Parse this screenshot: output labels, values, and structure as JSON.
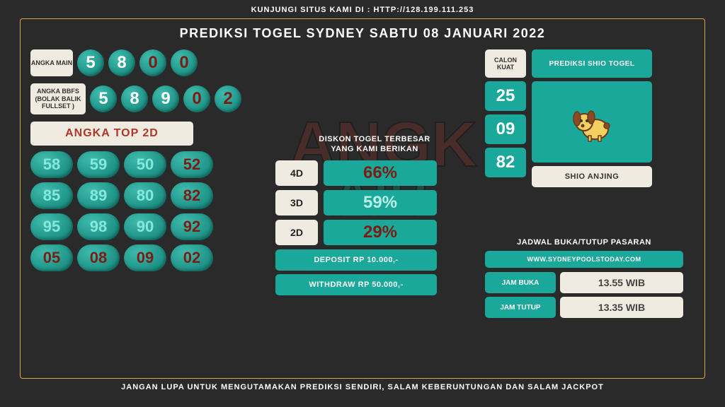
{
  "header_text": "KUNJUNGI SITUS KAMI DI : HTTP://128.199.111.253",
  "title": "PREDIKSI TOGEL SYDNEY SABTU 08 JANUARI 2022",
  "footer_text": "JANGAN LUPA UNTUK MENGUTAMAKAN PREDIKSI SENDIRI, SALAM KEBERUNTUNGAN DAN SALAM JACKPOT",
  "angka_main": {
    "label": "ANGKA MAIN",
    "values": [
      "5",
      "8",
      "0",
      "0"
    ]
  },
  "angka_bbfs": {
    "label": "ANGKA BBFS (BOLAK BALIK FULLSET )",
    "values": [
      "5",
      "8",
      "9",
      "0",
      "2"
    ]
  },
  "top2d": {
    "header": "ANGKA TOP 2D",
    "values": [
      "58",
      "59",
      "50",
      "52",
      "85",
      "89",
      "80",
      "82",
      "95",
      "98",
      "90",
      "92",
      "05",
      "08",
      "09",
      "02"
    ]
  },
  "diskon": {
    "title_line1": "DISKON TOGEL TERBESAR",
    "title_line2": "YANG KAMI BERIKAN",
    "rows": [
      {
        "label": "4D",
        "value": "66%",
        "style": "red"
      },
      {
        "label": "3D",
        "value": "59%",
        "style": "light"
      },
      {
        "label": "2D",
        "value": "29%",
        "style": "red"
      }
    ],
    "deposit": "DEPOSIT RP 10.000,-",
    "withdraw": "WITHDRAW RP 50.000,-"
  },
  "calon": {
    "label": "CALON KUAT",
    "values": [
      "25",
      "09",
      "82"
    ]
  },
  "shio": {
    "header": "PREDIKSI SHIO TOGEL",
    "name": "SHIO ANJING"
  },
  "jadwal": {
    "title": "JADWAL BUKA/TUTUP PASARAN",
    "url": "WWW.SYDNEYPOOLSTODAY.COM",
    "buka_label": "JAM BUKA",
    "buka_val": "13.55 WIB",
    "tutup_label": "JAM TUTUP",
    "tutup_val": "13.35 WIB"
  },
  "colors": {
    "teal": "#1aa89a",
    "cream": "#f0ebe0",
    "gold": "#d9a842",
    "darkred": "#7a1d14"
  }
}
